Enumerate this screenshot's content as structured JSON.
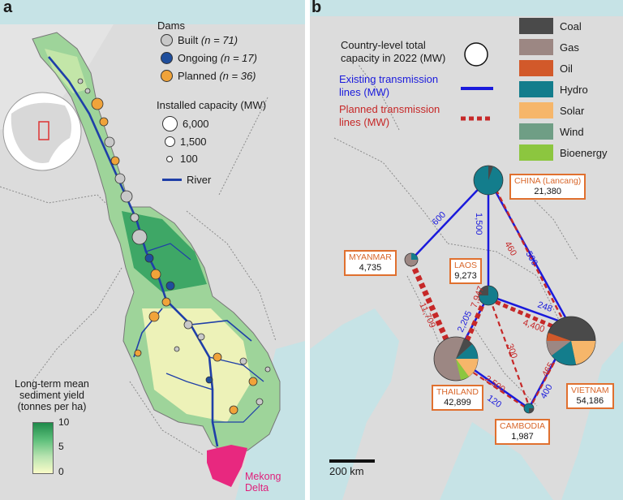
{
  "panel_a": {
    "label": "a",
    "dams_title": "Dams",
    "built": {
      "name": "Built",
      "n": "(n = 71)",
      "color": "#c8c8c8"
    },
    "ongoing": {
      "name": "Ongoing",
      "n": "(n = 17)",
      "color": "#1f4e9c"
    },
    "planned": {
      "name": "Planned",
      "n": "(n = 36)",
      "color": "#f0a33a"
    },
    "capacity_title": "Installed capacity (MW)",
    "capacity_values": [
      "6,000",
      "1,500",
      "100"
    ],
    "river_label": "River",
    "river_color": "#1f3fa8",
    "sediment_title": "Long-term mean sediment yield (tonnes per ha)",
    "sediment_ticks": [
      "10",
      "5",
      "0"
    ],
    "delta_label": "Mekong Delta",
    "delta_color": "#e8287f"
  },
  "panel_b": {
    "label": "b",
    "legend_capacity": "Country-level total capacity in 2022 (MW)",
    "legend_existing": "Existing transmission lines (MW)",
    "legend_planned": "Planned transmission lines (MW)",
    "existing_color": "#1a1adc",
    "planned_color": "#c62828",
    "fuels": [
      {
        "name": "Coal",
        "color": "#4a4a4a"
      },
      {
        "name": "Gas",
        "color": "#9c8783"
      },
      {
        "name": "Oil",
        "color": "#d2592a"
      },
      {
        "name": "Hydro",
        "color": "#137d8c"
      },
      {
        "name": "Solar",
        "color": "#f6b66a"
      },
      {
        "name": "Wind",
        "color": "#6f9e85"
      },
      {
        "name": "Bioenergy",
        "color": "#8cc63f"
      }
    ],
    "countries": {
      "china": {
        "name": "CHINA (Lancang)",
        "value": "21,380"
      },
      "myanmar": {
        "name": "MYANMAR",
        "value": "4,735"
      },
      "laos": {
        "name": "LAOS",
        "value": "9,273"
      },
      "thailand": {
        "name": "THAILAND",
        "value": "42,899"
      },
      "vietnam": {
        "name": "VIETNAM",
        "value": "54,186"
      },
      "cambodia": {
        "name": "CAMBODIA",
        "value": "1,987"
      }
    },
    "existing_lines": [
      "600",
      "500",
      "1,500",
      "2,205",
      "248",
      "400",
      "120"
    ],
    "planned_lines": [
      "460",
      "11,709",
      "7,947",
      "4,400",
      "300",
      "2,500",
      "465"
    ],
    "scale_label": "200 km"
  }
}
